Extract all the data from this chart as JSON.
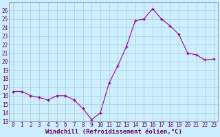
{
  "x": [
    0,
    1,
    2,
    3,
    4,
    5,
    6,
    7,
    8,
    9,
    10,
    11,
    12,
    13,
    14,
    15,
    16,
    17,
    18,
    19,
    20,
    21,
    22,
    23
  ],
  "y": [
    16.5,
    16.5,
    16.0,
    15.8,
    15.5,
    16.0,
    16.0,
    15.5,
    14.5,
    13.2,
    14.0,
    17.5,
    19.5,
    21.8,
    24.8,
    25.0,
    26.2,
    25.0,
    24.2,
    23.2,
    21.0,
    20.8,
    20.2,
    20.3
  ],
  "line_color": "#990099",
  "marker_color": "#990099",
  "bg_color": "#cceeff",
  "grid_color": "#aacccc",
  "xlabel": "Windchill (Refroidissement éolien,°C)",
  "ylim": [
    13,
    27
  ],
  "xlim": [
    -0.5,
    23.5
  ],
  "yticks": [
    13,
    14,
    15,
    16,
    17,
    18,
    19,
    20,
    21,
    22,
    23,
    24,
    25,
    26
  ],
  "xticks": [
    0,
    1,
    2,
    3,
    4,
    5,
    6,
    7,
    8,
    9,
    10,
    11,
    12,
    13,
    14,
    15,
    16,
    17,
    18,
    19,
    20,
    21,
    22,
    23
  ],
  "tick_fontsize": 5.5,
  "xlabel_fontsize": 6.5
}
